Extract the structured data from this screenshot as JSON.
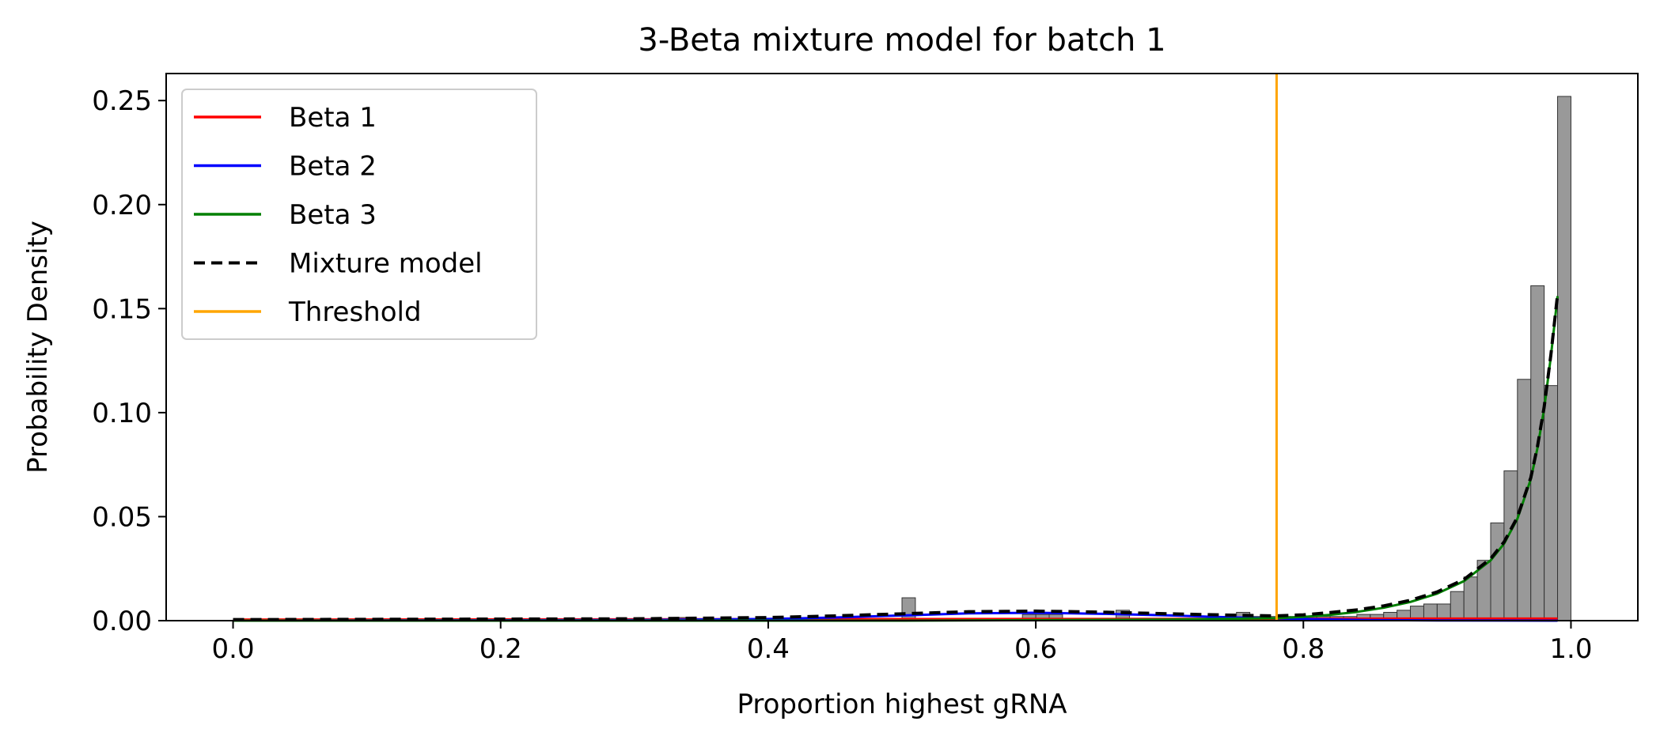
{
  "chart_data": {
    "type": "bar",
    "title": "3-Beta mixture model for batch 1",
    "xlabel": "Proportion highest gRNA",
    "ylabel": "Probability Density",
    "xlim": [
      -0.05,
      1.05
    ],
    "ylim": [
      0,
      0.263
    ],
    "xticks": [
      0.0,
      0.2,
      0.4,
      0.6,
      0.8,
      1.0
    ],
    "xtick_labels": [
      "0.0",
      "0.2",
      "0.4",
      "0.6",
      "0.8",
      "1.0"
    ],
    "yticks": [
      0.0,
      0.05,
      0.1,
      0.15,
      0.2,
      0.25
    ],
    "ytick_labels": [
      "0.00",
      "0.05",
      "0.10",
      "0.15",
      "0.20",
      "0.25"
    ],
    "grid": false,
    "legend_position": "top-left",
    "histogram": {
      "color": "#999999",
      "bin_width": 0.01,
      "bin_centers": [
        0.335,
        0.505,
        0.595,
        0.605,
        0.615,
        0.665,
        0.745,
        0.755,
        0.765,
        0.775,
        0.785,
        0.795,
        0.805,
        0.815,
        0.825,
        0.835,
        0.845,
        0.855,
        0.865,
        0.875,
        0.885,
        0.895,
        0.905,
        0.915,
        0.925,
        0.935,
        0.945,
        0.955,
        0.965,
        0.975,
        0.985,
        0.995,
        1.0
      ],
      "values": [
        0.0015,
        0.011,
        0.003,
        0.003,
        0.003,
        0.005,
        0.002,
        0.004,
        0.002,
        0.002,
        0.002,
        0.002,
        0.002,
        0.002,
        0.002,
        0.002,
        0.003,
        0.003,
        0.004,
        0.005,
        0.007,
        0.008,
        0.008,
        0.014,
        0.021,
        0.029,
        0.047,
        0.072,
        0.116,
        0.161,
        0.113,
        0.252,
        0.0
      ]
    },
    "threshold": {
      "name": "Threshold",
      "x": 0.78,
      "color": "#ffa500"
    },
    "series": [
      {
        "name": "Beta 1",
        "color": "#ff0000",
        "style": "solid",
        "x": [
          0.0,
          0.2,
          0.4,
          0.6,
          0.8,
          0.9,
          0.99
        ],
        "values": [
          0.0005,
          0.0006,
          0.0007,
          0.0008,
          0.0009,
          0.001,
          0.001
        ]
      },
      {
        "name": "Beta 2",
        "color": "#0000ff",
        "style": "solid",
        "x": [
          0.0,
          0.3,
          0.4,
          0.45,
          0.5,
          0.55,
          0.6,
          0.65,
          0.7,
          0.75,
          0.8,
          0.85,
          0.9,
          0.99
        ],
        "values": [
          0.0,
          0.0003,
          0.0008,
          0.0015,
          0.0025,
          0.0035,
          0.0038,
          0.0033,
          0.0025,
          0.0015,
          0.0008,
          0.0003,
          0.0001,
          0.0
        ]
      },
      {
        "name": "Beta 3",
        "color": "#008000",
        "style": "solid",
        "x": [
          0.0,
          0.5,
          0.7,
          0.78,
          0.8,
          0.82,
          0.84,
          0.86,
          0.88,
          0.9,
          0.92,
          0.94,
          0.95,
          0.96,
          0.97,
          0.975,
          0.98,
          0.985,
          0.99
        ],
        "values": [
          0.0,
          0.0,
          0.0005,
          0.0012,
          0.0018,
          0.0028,
          0.0042,
          0.0062,
          0.009,
          0.013,
          0.019,
          0.029,
          0.037,
          0.049,
          0.068,
          0.083,
          0.102,
          0.127,
          0.156
        ]
      },
      {
        "name": "Mixture model",
        "color": "#000000",
        "style": "dashed",
        "x": [
          0.0,
          0.3,
          0.4,
          0.45,
          0.5,
          0.55,
          0.6,
          0.65,
          0.7,
          0.75,
          0.78,
          0.8,
          0.82,
          0.84,
          0.86,
          0.88,
          0.9,
          0.92,
          0.94,
          0.95,
          0.96,
          0.97,
          0.975,
          0.98,
          0.985,
          0.99
        ],
        "values": [
          0.0005,
          0.0009,
          0.0015,
          0.0023,
          0.0033,
          0.0043,
          0.0046,
          0.0041,
          0.0033,
          0.0026,
          0.0023,
          0.0028,
          0.0039,
          0.0052,
          0.0071,
          0.0098,
          0.0138,
          0.0198,
          0.0298,
          0.0378,
          0.0498,
          0.0688,
          0.0838,
          0.1028,
          0.1278,
          0.1568
        ]
      }
    ],
    "legend": [
      "Beta 1",
      "Beta 2",
      "Beta 3",
      "Mixture model",
      "Threshold"
    ]
  }
}
